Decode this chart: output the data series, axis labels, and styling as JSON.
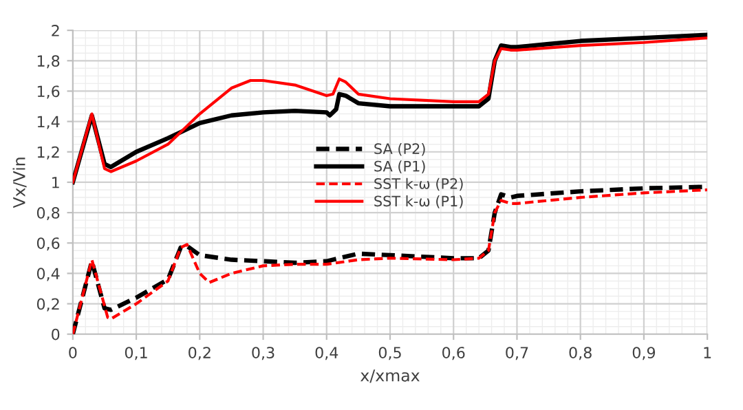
{
  "chart_data": {
    "type": "line",
    "xlabel": "x/xmax",
    "ylabel": "Vx/Vin",
    "xlim": [
      0,
      1
    ],
    "ylim": [
      0,
      2
    ],
    "xticks": [
      0,
      {
        "value": 0.1,
        "label": "0,1"
      },
      {
        "value": 0.2,
        "label": "0,2"
      },
      {
        "value": 0.3,
        "label": "0,3"
      },
      {
        "value": 0.4,
        "label": "0,4"
      },
      {
        "value": 0.5,
        "label": "0,5"
      },
      {
        "value": 0.6,
        "label": "0,6"
      },
      {
        "value": 0.7,
        "label": "0,7"
      },
      {
        "value": 0.8,
        "label": "0,8"
      },
      {
        "value": 0.9,
        "label": "0,9"
      },
      1
    ],
    "yticks": [
      0,
      {
        "value": 0.2,
        "label": "0,2"
      },
      {
        "value": 0.4,
        "label": "0,4"
      },
      {
        "value": 0.6,
        "label": "0,6"
      },
      {
        "value": 0.8,
        "label": "0,8"
      },
      1,
      {
        "value": 1.2,
        "label": "1,2"
      },
      {
        "value": 1.4,
        "label": "1,4"
      },
      {
        "value": 1.6,
        "label": "1,6"
      },
      {
        "value": 1.8,
        "label": "1,8"
      },
      2
    ],
    "grid": true,
    "legend": "center",
    "marker": "none",
    "series": [
      {
        "name": "SA (P2)",
        "color": "#000000",
        "line_style": "dashed",
        "x": [
          0,
          0.03,
          0.05,
          0.06,
          0.1,
          0.15,
          0.17,
          0.18,
          0.2,
          0.25,
          0.3,
          0.35,
          0.4,
          0.45,
          0.5,
          0.6,
          0.64,
          0.655,
          0.665,
          0.675,
          0.69,
          0.7,
          0.8,
          0.9,
          1
        ],
        "values": [
          0,
          0.48,
          0.17,
          0.16,
          0.24,
          0.36,
          0.57,
          0.58,
          0.52,
          0.49,
          0.48,
          0.47,
          0.48,
          0.53,
          0.52,
          0.5,
          0.5,
          0.55,
          0.8,
          0.92,
          0.9,
          0.91,
          0.94,
          0.96,
          0.97
        ]
      },
      {
        "name": "SA (P1)",
        "color": "#000000",
        "line_style": "solid",
        "x": [
          0,
          0.03,
          0.05,
          0.06,
          0.08,
          0.1,
          0.15,
          0.2,
          0.25,
          0.3,
          0.35,
          0.4,
          0.405,
          0.415,
          0.42,
          0.43,
          0.45,
          0.5,
          0.6,
          0.64,
          0.655,
          0.665,
          0.675,
          0.69,
          0.7,
          0.75,
          0.8,
          0.9,
          1
        ],
        "values": [
          1,
          1.44,
          1.12,
          1.1,
          1.15,
          1.2,
          1.29,
          1.39,
          1.44,
          1.46,
          1.47,
          1.46,
          1.44,
          1.48,
          1.58,
          1.57,
          1.52,
          1.5,
          1.5,
          1.5,
          1.55,
          1.8,
          1.9,
          1.89,
          1.89,
          1.91,
          1.93,
          1.95,
          1.97
        ]
      },
      {
        "name": "SST k-ω (P2)",
        "color": "#ff0000",
        "line_style": "dashed",
        "x": [
          0,
          0.03,
          0.055,
          0.06,
          0.1,
          0.15,
          0.17,
          0.18,
          0.2,
          0.215,
          0.25,
          0.3,
          0.35,
          0.4,
          0.45,
          0.5,
          0.6,
          0.64,
          0.655,
          0.665,
          0.675,
          0.69,
          0.7,
          0.8,
          0.9,
          1
        ],
        "values": [
          0,
          0.49,
          0.11,
          0.1,
          0.2,
          0.35,
          0.57,
          0.59,
          0.4,
          0.34,
          0.4,
          0.45,
          0.46,
          0.46,
          0.49,
          0.5,
          0.49,
          0.5,
          0.55,
          0.8,
          0.88,
          0.86,
          0.86,
          0.9,
          0.93,
          0.95
        ]
      },
      {
        "name": "SST k-ω (P1)",
        "color": "#ff0000",
        "line_style": "solid",
        "x": [
          0,
          0.03,
          0.05,
          0.06,
          0.1,
          0.15,
          0.2,
          0.25,
          0.28,
          0.3,
          0.35,
          0.4,
          0.41,
          0.42,
          0.43,
          0.45,
          0.5,
          0.6,
          0.64,
          0.655,
          0.665,
          0.675,
          0.69,
          0.7,
          0.8,
          0.9,
          1
        ],
        "values": [
          1,
          1.45,
          1.09,
          1.07,
          1.14,
          1.25,
          1.45,
          1.62,
          1.67,
          1.67,
          1.64,
          1.57,
          1.58,
          1.68,
          1.66,
          1.58,
          1.55,
          1.53,
          1.53,
          1.58,
          1.8,
          1.88,
          1.87,
          1.87,
          1.9,
          1.92,
          1.95
        ]
      }
    ]
  }
}
